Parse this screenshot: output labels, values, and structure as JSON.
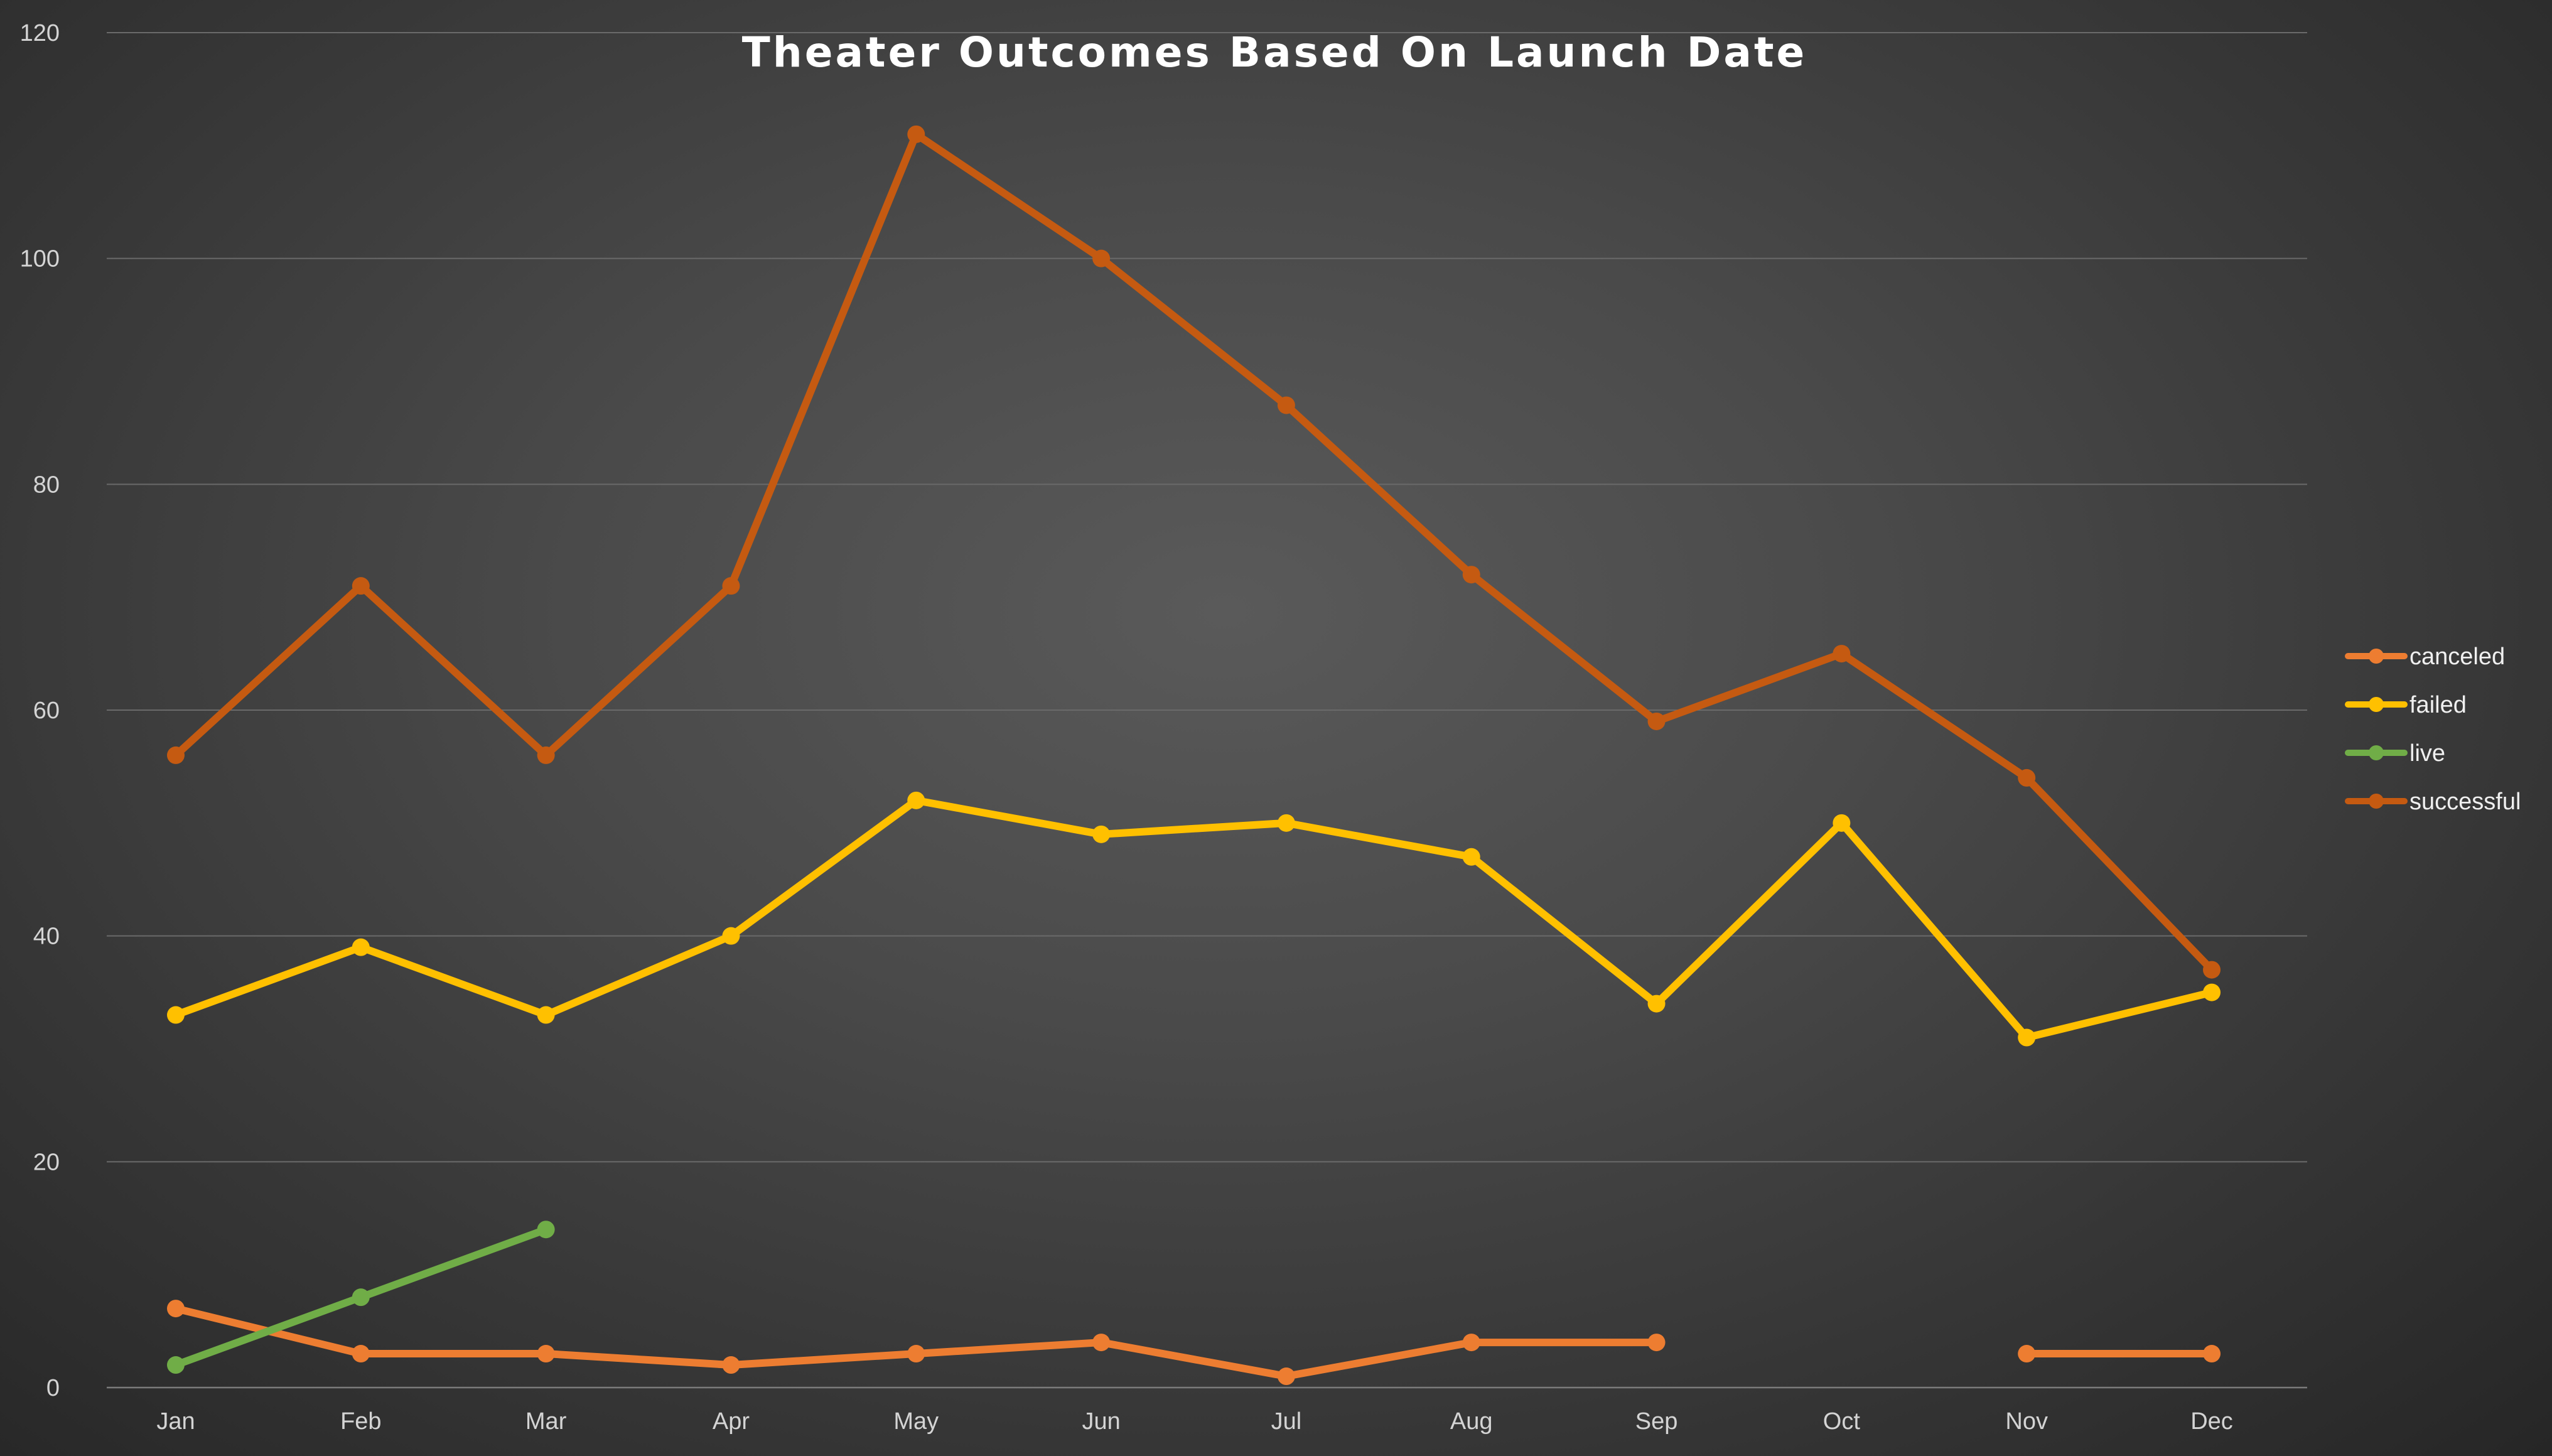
{
  "chart_data": {
    "type": "line",
    "title": "Theater Outcomes Based On Launch Date",
    "xlabel": "",
    "ylabel": "",
    "categories": [
      "Jan",
      "Feb",
      "Mar",
      "Apr",
      "May",
      "Jun",
      "Jul",
      "Aug",
      "Sep",
      "Oct",
      "Nov",
      "Dec"
    ],
    "ylim": [
      0,
      120
    ],
    "yticks": [
      0,
      20,
      40,
      60,
      80,
      100,
      120
    ],
    "grid": true,
    "legend_position": "right",
    "series": [
      {
        "name": "canceled",
        "color": "#ed7d31",
        "values": [
          7,
          3,
          3,
          2,
          3,
          4,
          1,
          4,
          4,
          null,
          3,
          3
        ]
      },
      {
        "name": "failed",
        "color": "#ffc000",
        "values": [
          33,
          39,
          33,
          40,
          52,
          49,
          50,
          47,
          34,
          50,
          31,
          35
        ]
      },
      {
        "name": "live",
        "color": "#70ad47",
        "values": [
          2,
          8,
          14,
          null,
          null,
          null,
          null,
          null,
          null,
          null,
          null,
          null
        ]
      },
      {
        "name": "successful",
        "color": "#c55a11",
        "values": [
          56,
          71,
          56,
          71,
          111,
          100,
          87,
          72,
          59,
          65,
          54,
          37
        ]
      }
    ]
  }
}
